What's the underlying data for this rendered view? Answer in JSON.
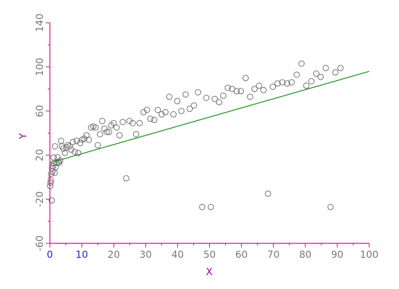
{
  "chart_data": {
    "type": "scatter",
    "title": "",
    "xlabel": "X",
    "ylabel": "Y",
    "xlim": [
      0,
      100
    ],
    "ylim": [
      -60,
      140
    ],
    "x_ticks": [
      0,
      10,
      20,
      30,
      40,
      50,
      60,
      70,
      80,
      90,
      100
    ],
    "x_tick_labels": [
      "0",
      "10",
      "20",
      "30",
      "40",
      "50",
      "60",
      "70",
      "80",
      "90",
      "100"
    ],
    "x_tick_labels_blue": [
      "0",
      "10"
    ],
    "y_ticks": [
      -60,
      -20,
      20,
      60,
      100,
      140
    ],
    "y_tick_labels": [
      "-60",
      "-20",
      "20",
      "60",
      "100",
      "140"
    ],
    "grid": false,
    "colors": {
      "axis": "#e0007f",
      "label": "#a0008c",
      "tick_text": "#777777",
      "tick_text_blue": "#2020cc",
      "marker": "#6e6e6e",
      "fit_line": "#118811"
    },
    "series": [
      {
        "values": [
          {
            "x": 0.1,
            "y": -8
          },
          {
            "x": 0.2,
            "y": -5
          },
          {
            "x": 0.3,
            "y": -3
          },
          {
            "x": 0.4,
            "y": 3
          },
          {
            "x": 0.6,
            "y": -21
          },
          {
            "x": 0.7,
            "y": 8
          },
          {
            "x": 0.8,
            "y": 5
          },
          {
            "x": 1.0,
            "y": 10
          },
          {
            "x": 1.2,
            "y": 18
          },
          {
            "x": 1.3,
            "y": 13
          },
          {
            "x": 1.5,
            "y": 4
          },
          {
            "x": 1.6,
            "y": 28
          },
          {
            "x": 1.8,
            "y": 9
          },
          {
            "x": 2.1,
            "y": 13
          },
          {
            "x": 2.4,
            "y": 18
          },
          {
            "x": 2.6,
            "y": 14
          },
          {
            "x": 2.9,
            "y": 13
          },
          {
            "x": 3.2,
            "y": 15
          },
          {
            "x": 3.5,
            "y": 33
          },
          {
            "x": 3.8,
            "y": 28
          },
          {
            "x": 4.2,
            "y": 26
          },
          {
            "x": 4.7,
            "y": 22
          },
          {
            "x": 5.2,
            "y": 27
          },
          {
            "x": 5.6,
            "y": 29
          },
          {
            "x": 6.2,
            "y": 28
          },
          {
            "x": 6.7,
            "y": 25
          },
          {
            "x": 7.2,
            "y": 32
          },
          {
            "x": 7.8,
            "y": 23
          },
          {
            "x": 8.4,
            "y": 33
          },
          {
            "x": 8.9,
            "y": 22
          },
          {
            "x": 9.5,
            "y": 31
          },
          {
            "x": 10.1,
            "y": 34
          },
          {
            "x": 10.8,
            "y": 35
          },
          {
            "x": 11.5,
            "y": 38
          },
          {
            "x": 12.2,
            "y": 34
          },
          {
            "x": 12.9,
            "y": 45
          },
          {
            "x": 13.6,
            "y": 46
          },
          {
            "x": 14.3,
            "y": 45
          },
          {
            "x": 15.0,
            "y": 29
          },
          {
            "x": 15.7,
            "y": 39
          },
          {
            "x": 16.4,
            "y": 51
          },
          {
            "x": 17.1,
            "y": 44
          },
          {
            "x": 17.8,
            "y": 41
          },
          {
            "x": 18.5,
            "y": 41
          },
          {
            "x": 19.2,
            "y": 47
          },
          {
            "x": 20.0,
            "y": 49
          },
          {
            "x": 20.9,
            "y": 45
          },
          {
            "x": 21.8,
            "y": 38
          },
          {
            "x": 22.8,
            "y": 50
          },
          {
            "x": 23.9,
            "y": -1
          },
          {
            "x": 24.9,
            "y": 51
          },
          {
            "x": 25.9,
            "y": 49
          },
          {
            "x": 27.0,
            "y": 39
          },
          {
            "x": 28.1,
            "y": 49
          },
          {
            "x": 29.3,
            "y": 59
          },
          {
            "x": 30.4,
            "y": 61
          },
          {
            "x": 31.5,
            "y": 53
          },
          {
            "x": 32.7,
            "y": 52
          },
          {
            "x": 33.8,
            "y": 61
          },
          {
            "x": 35.0,
            "y": 57
          },
          {
            "x": 36.2,
            "y": 59
          },
          {
            "x": 37.4,
            "y": 73
          },
          {
            "x": 38.7,
            "y": 57
          },
          {
            "x": 39.9,
            "y": 69
          },
          {
            "x": 41.2,
            "y": 60
          },
          {
            "x": 42.5,
            "y": 75
          },
          {
            "x": 43.8,
            "y": 62
          },
          {
            "x": 45.1,
            "y": 65
          },
          {
            "x": 46.4,
            "y": 77
          },
          {
            "x": 47.7,
            "y": -27
          },
          {
            "x": 49.0,
            "y": 72
          },
          {
            "x": 50.4,
            "y": -27
          },
          {
            "x": 51.6,
            "y": 71
          },
          {
            "x": 53.0,
            "y": 68
          },
          {
            "x": 54.3,
            "y": 74
          },
          {
            "x": 55.7,
            "y": 81
          },
          {
            "x": 57.1,
            "y": 80
          },
          {
            "x": 58.5,
            "y": 78
          },
          {
            "x": 59.8,
            "y": 78
          },
          {
            "x": 61.3,
            "y": 90
          },
          {
            "x": 62.7,
            "y": 73
          },
          {
            "x": 64.1,
            "y": 80
          },
          {
            "x": 65.5,
            "y": 83
          },
          {
            "x": 66.9,
            "y": 79
          },
          {
            "x": 68.3,
            "y": -15
          },
          {
            "x": 69.8,
            "y": 82
          },
          {
            "x": 71.3,
            "y": 85
          },
          {
            "x": 72.8,
            "y": 86
          },
          {
            "x": 74.3,
            "y": 85
          },
          {
            "x": 75.7,
            "y": 86
          },
          {
            "x": 77.3,
            "y": 93
          },
          {
            "x": 78.8,
            "y": 103
          },
          {
            "x": 80.3,
            "y": 83
          },
          {
            "x": 81.9,
            "y": 87
          },
          {
            "x": 83.4,
            "y": 94
          },
          {
            "x": 84.8,
            "y": 91
          },
          {
            "x": 86.4,
            "y": 99
          },
          {
            "x": 87.9,
            "y": -27
          },
          {
            "x": 89.4,
            "y": 95
          },
          {
            "x": 91.0,
            "y": 99
          }
        ]
      }
    ],
    "fit_line": {
      "x": [
        0,
        100
      ],
      "y": [
        13,
        96
      ]
    }
  }
}
